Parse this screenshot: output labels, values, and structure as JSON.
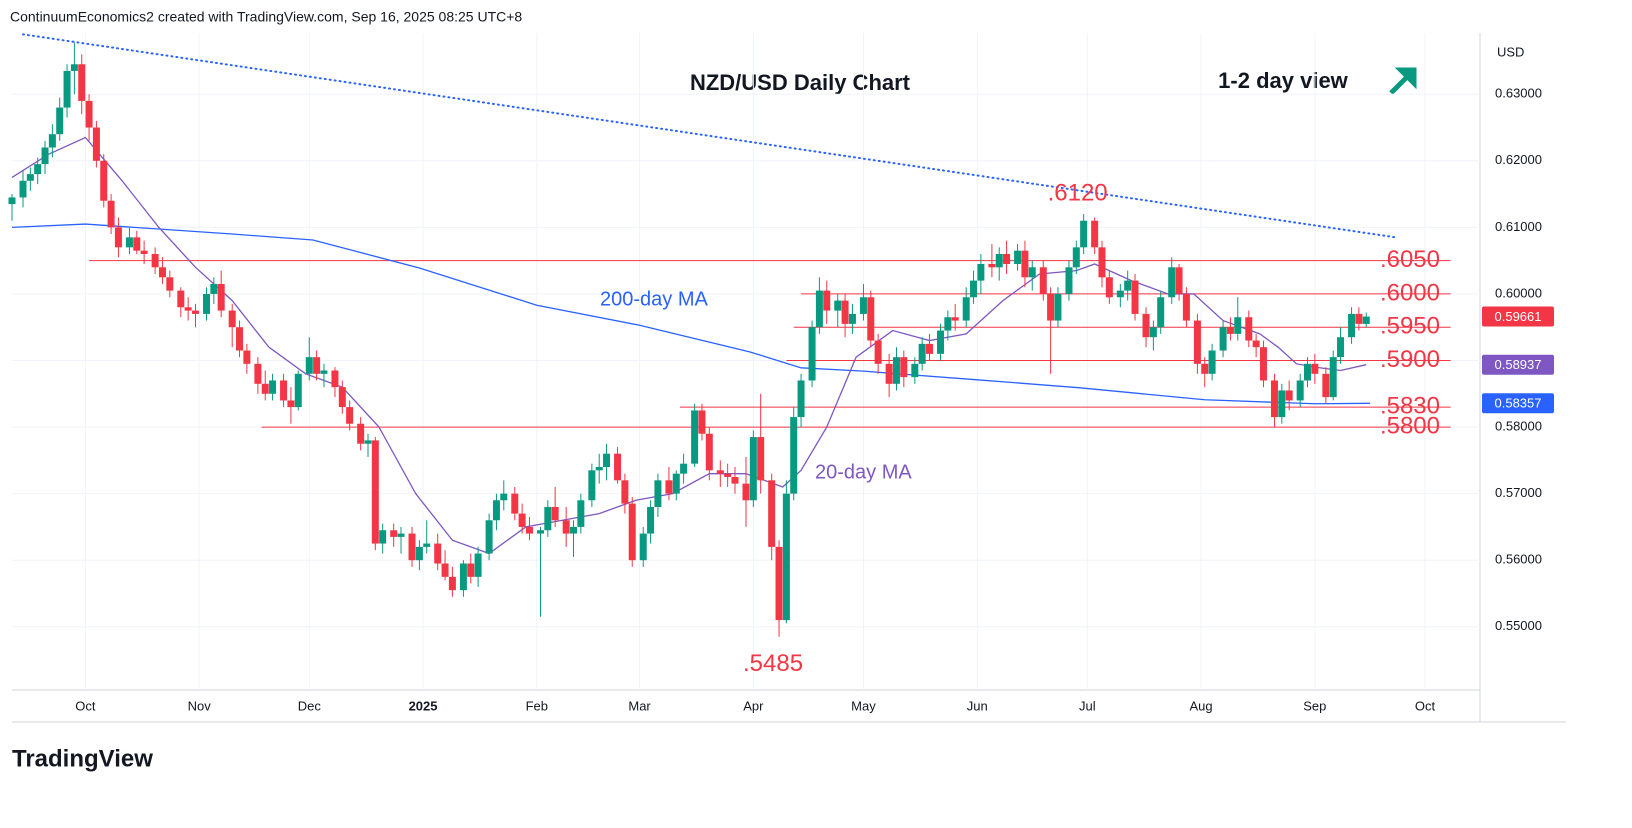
{
  "header": "ContinuumEconomics2 created with TradingView.com, Sep 16, 2025 08:25 UTC+8",
  "footer": "TradingView",
  "chart_data": {
    "type": "candlestick",
    "title": "NZD/USD Daily Chart",
    "subtitle": "1-2 day view",
    "currency": "USD",
    "xlim": [
      0,
      400
    ],
    "ylim": [
      0.5405,
      0.6392
    ],
    "grid": true,
    "up_color": "#089981",
    "down_color": "#f23645",
    "xticks": [
      {
        "value": 20,
        "label": "Oct"
      },
      {
        "value": 51,
        "label": "Nov"
      },
      {
        "value": 81,
        "label": "Dec"
      },
      {
        "value": 112,
        "label": "2025"
      },
      {
        "value": 143,
        "label": "Feb"
      },
      {
        "value": 171,
        "label": "Mar"
      },
      {
        "value": 202,
        "label": "Apr"
      },
      {
        "value": 232,
        "label": "May"
      },
      {
        "value": 263,
        "label": "Jun"
      },
      {
        "value": 293,
        "label": "Jul"
      },
      {
        "value": 324,
        "label": "Aug"
      },
      {
        "value": 355,
        "label": "Sep"
      },
      {
        "value": 385,
        "label": "Oct"
      }
    ],
    "yticks": [
      {
        "value": 0.55,
        "label": "0.55000"
      },
      {
        "value": 0.56,
        "label": "0.56000"
      },
      {
        "value": 0.57,
        "label": "0.57000"
      },
      {
        "value": 0.58,
        "label": "0.58000"
      },
      {
        "value": 0.59,
        "label": "0.59000"
      },
      {
        "value": 0.6,
        "label": "0.60000"
      },
      {
        "value": 0.61,
        "label": "0.61000"
      },
      {
        "value": 0.62,
        "label": "0.62000"
      },
      {
        "value": 0.63,
        "label": "0.63000"
      }
    ],
    "candles": [
      [
        0,
        0.6135,
        0.615,
        0.611,
        0.6145
      ],
      [
        3,
        0.6145,
        0.6185,
        0.613,
        0.617
      ],
      [
        5,
        0.617,
        0.619,
        0.6155,
        0.618
      ],
      [
        7,
        0.618,
        0.6205,
        0.6165,
        0.6195
      ],
      [
        9,
        0.6195,
        0.623,
        0.618,
        0.622
      ],
      [
        11,
        0.622,
        0.6255,
        0.6205,
        0.624
      ],
      [
        13,
        0.624,
        0.6295,
        0.623,
        0.628
      ],
      [
        15,
        0.628,
        0.6345,
        0.6265,
        0.6335
      ],
      [
        17,
        0.6335,
        0.6378,
        0.63,
        0.6345
      ],
      [
        19,
        0.6345,
        0.636,
        0.627,
        0.629
      ],
      [
        21,
        0.629,
        0.63,
        0.623,
        0.625
      ],
      [
        23,
        0.625,
        0.626,
        0.619,
        0.62
      ],
      [
        25,
        0.62,
        0.621,
        0.613,
        0.614
      ],
      [
        27,
        0.614,
        0.615,
        0.609,
        0.61
      ],
      [
        29,
        0.61,
        0.6115,
        0.6055,
        0.607
      ],
      [
        32,
        0.607,
        0.61,
        0.606,
        0.6085
      ],
      [
        34,
        0.6085,
        0.6095,
        0.606,
        0.6065
      ],
      [
        36,
        0.6065,
        0.608,
        0.6045,
        0.606
      ],
      [
        39,
        0.606,
        0.607,
        0.603,
        0.604
      ],
      [
        41,
        0.604,
        0.6055,
        0.6015,
        0.6025
      ],
      [
        43,
        0.6025,
        0.6035,
        0.5995,
        0.6005
      ],
      [
        46,
        0.6005,
        0.601,
        0.5965,
        0.598
      ],
      [
        48,
        0.598,
        0.5995,
        0.596,
        0.5975
      ],
      [
        50,
        0.5975,
        0.5985,
        0.595,
        0.597
      ],
      [
        53,
        0.597,
        0.601,
        0.596,
        0.6
      ],
      [
        55,
        0.6,
        0.6025,
        0.5985,
        0.6015
      ],
      [
        57,
        0.6015,
        0.6035,
        0.5965,
        0.5975
      ],
      [
        60,
        0.5975,
        0.5985,
        0.592,
        0.595
      ],
      [
        62,
        0.595,
        0.596,
        0.5905,
        0.5915
      ],
      [
        64,
        0.5915,
        0.5925,
        0.588,
        0.5895
      ],
      [
        67,
        0.5895,
        0.5905,
        0.585,
        0.5865
      ],
      [
        69,
        0.5865,
        0.5885,
        0.584,
        0.585
      ],
      [
        71,
        0.585,
        0.588,
        0.584,
        0.587
      ],
      [
        74,
        0.587,
        0.588,
        0.583,
        0.584
      ],
      [
        76,
        0.584,
        0.586,
        0.5805,
        0.583
      ],
      [
        78,
        0.583,
        0.5885,
        0.5825,
        0.588
      ],
      [
        81,
        0.588,
        0.5935,
        0.587,
        0.5905
      ],
      [
        83,
        0.5905,
        0.5915,
        0.587,
        0.588
      ],
      [
        85,
        0.588,
        0.5895,
        0.586,
        0.5885
      ],
      [
        88,
        0.5885,
        0.589,
        0.5845,
        0.586
      ],
      [
        90,
        0.586,
        0.587,
        0.582,
        0.583
      ],
      [
        92,
        0.583,
        0.584,
        0.5795,
        0.5805
      ],
      [
        95,
        0.5805,
        0.5815,
        0.5765,
        0.5775
      ],
      [
        97,
        0.5775,
        0.579,
        0.5755,
        0.578
      ],
      [
        99,
        0.578,
        0.5785,
        0.5615,
        0.5625
      ],
      [
        101,
        0.5625,
        0.5655,
        0.561,
        0.5645
      ],
      [
        104,
        0.5645,
        0.5655,
        0.562,
        0.5635
      ],
      [
        106,
        0.5635,
        0.565,
        0.561,
        0.564
      ],
      [
        109,
        0.564,
        0.565,
        0.559,
        0.56
      ],
      [
        111,
        0.56,
        0.563,
        0.5585,
        0.562
      ],
      [
        113,
        0.562,
        0.566,
        0.561,
        0.5625
      ],
      [
        116,
        0.5625,
        0.564,
        0.5585,
        0.5595
      ],
      [
        118,
        0.5595,
        0.5615,
        0.557,
        0.5575
      ],
      [
        120,
        0.5575,
        0.559,
        0.5545,
        0.5555
      ],
      [
        123,
        0.5555,
        0.56,
        0.5545,
        0.5595
      ],
      [
        125,
        0.5595,
        0.561,
        0.5565,
        0.5575
      ],
      [
        127,
        0.5575,
        0.562,
        0.556,
        0.561
      ],
      [
        130,
        0.561,
        0.567,
        0.56,
        0.566
      ],
      [
        132,
        0.566,
        0.57,
        0.5645,
        0.569
      ],
      [
        134,
        0.569,
        0.572,
        0.5675,
        0.57
      ],
      [
        137,
        0.57,
        0.571,
        0.566,
        0.567
      ],
      [
        139,
        0.567,
        0.5685,
        0.564,
        0.565
      ],
      [
        141,
        0.565,
        0.5665,
        0.563,
        0.564
      ],
      [
        144,
        0.564,
        0.565,
        0.5515,
        0.5645
      ],
      [
        146,
        0.5645,
        0.569,
        0.5635,
        0.568
      ],
      [
        148,
        0.568,
        0.571,
        0.565,
        0.566
      ],
      [
        151,
        0.566,
        0.568,
        0.562,
        0.564
      ],
      [
        153,
        0.564,
        0.566,
        0.5605,
        0.565
      ],
      [
        155,
        0.565,
        0.57,
        0.564,
        0.569
      ],
      [
        158,
        0.569,
        0.5745,
        0.568,
        0.5735
      ],
      [
        160,
        0.5735,
        0.576,
        0.5715,
        0.574
      ],
      [
        162,
        0.574,
        0.5775,
        0.572,
        0.576
      ],
      [
        165,
        0.576,
        0.577,
        0.5715,
        0.572
      ],
      [
        167,
        0.572,
        0.573,
        0.567,
        0.5685
      ],
      [
        169,
        0.5685,
        0.5695,
        0.559,
        0.56
      ],
      [
        172,
        0.56,
        0.565,
        0.559,
        0.564
      ],
      [
        174,
        0.564,
        0.569,
        0.5625,
        0.568
      ],
      [
        176,
        0.568,
        0.573,
        0.5665,
        0.572
      ],
      [
        179,
        0.572,
        0.574,
        0.569,
        0.57
      ],
      [
        181,
        0.57,
        0.5735,
        0.569,
        0.573
      ],
      [
        183,
        0.573,
        0.576,
        0.5715,
        0.5745
      ],
      [
        186,
        0.5745,
        0.5835,
        0.574,
        0.5825
      ],
      [
        188,
        0.5825,
        0.5835,
        0.578,
        0.579
      ],
      [
        190,
        0.579,
        0.58,
        0.572,
        0.5735
      ],
      [
        193,
        0.5735,
        0.575,
        0.571,
        0.573
      ],
      [
        195,
        0.573,
        0.5745,
        0.571,
        0.5725
      ],
      [
        197,
        0.5725,
        0.574,
        0.57,
        0.5715
      ],
      [
        200,
        0.5715,
        0.5755,
        0.565,
        0.569
      ],
      [
        202,
        0.569,
        0.5795,
        0.568,
        0.5785
      ],
      [
        204,
        0.5785,
        0.585,
        0.57,
        0.572
      ],
      [
        207,
        0.572,
        0.573,
        0.56,
        0.562
      ],
      [
        209,
        0.562,
        0.563,
        0.5485,
        0.551
      ],
      [
        211,
        0.551,
        0.572,
        0.5505,
        0.57
      ],
      [
        213,
        0.57,
        0.583,
        0.569,
        0.5815
      ],
      [
        215,
        0.5815,
        0.588,
        0.58,
        0.587
      ],
      [
        218,
        0.587,
        0.596,
        0.586,
        0.595
      ],
      [
        220,
        0.595,
        0.6025,
        0.594,
        0.6005
      ],
      [
        222,
        0.6005,
        0.602,
        0.5955,
        0.5975
      ],
      [
        225,
        0.5975,
        0.6,
        0.595,
        0.599
      ],
      [
        227,
        0.599,
        0.6,
        0.5935,
        0.5955
      ],
      [
        229,
        0.5955,
        0.5985,
        0.594,
        0.597
      ],
      [
        232,
        0.597,
        0.6015,
        0.596,
        0.5995
      ],
      [
        234,
        0.5995,
        0.6005,
        0.592,
        0.593
      ],
      [
        236,
        0.593,
        0.594,
        0.588,
        0.5895
      ],
      [
        239,
        0.5895,
        0.591,
        0.5845,
        0.5865
      ],
      [
        241,
        0.5865,
        0.592,
        0.5855,
        0.5905
      ],
      [
        243,
        0.5905,
        0.5915,
        0.586,
        0.5875
      ],
      [
        246,
        0.5875,
        0.5905,
        0.5865,
        0.5895
      ],
      [
        248,
        0.5895,
        0.5935,
        0.5885,
        0.5925
      ],
      [
        250,
        0.5925,
        0.594,
        0.59,
        0.591
      ],
      [
        253,
        0.591,
        0.5955,
        0.59,
        0.5945
      ],
      [
        255,
        0.5945,
        0.5975,
        0.593,
        0.5965
      ],
      [
        257,
        0.5965,
        0.5985,
        0.5945,
        0.596
      ],
      [
        260,
        0.596,
        0.601,
        0.595,
        0.5995
      ],
      [
        262,
        0.5995,
        0.6035,
        0.5985,
        0.602
      ],
      [
        264,
        0.602,
        0.606,
        0.6,
        0.6045
      ],
      [
        267,
        0.6045,
        0.6075,
        0.6025,
        0.604
      ],
      [
        269,
        0.604,
        0.607,
        0.602,
        0.606
      ],
      [
        271,
        0.606,
        0.608,
        0.603,
        0.6045
      ],
      [
        274,
        0.6045,
        0.6075,
        0.6035,
        0.6065
      ],
      [
        276,
        0.6065,
        0.608,
        0.601,
        0.6025
      ],
      [
        278,
        0.6025,
        0.605,
        0.6005,
        0.604
      ],
      [
        281,
        0.604,
        0.605,
        0.599,
        0.6
      ],
      [
        283,
        0.6,
        0.601,
        0.588,
        0.596
      ],
      [
        285,
        0.596,
        0.601,
        0.595,
        0.6
      ],
      [
        288,
        0.6,
        0.605,
        0.599,
        0.604
      ],
      [
        290,
        0.604,
        0.608,
        0.603,
        0.607
      ],
      [
        292,
        0.607,
        0.612,
        0.606,
        0.611
      ],
      [
        295,
        0.611,
        0.6115,
        0.606,
        0.607
      ],
      [
        297,
        0.607,
        0.608,
        0.601,
        0.6025
      ],
      [
        299,
        0.6025,
        0.6035,
        0.5985,
        0.5995
      ],
      [
        302,
        0.5995,
        0.6015,
        0.598,
        0.6005
      ],
      [
        304,
        0.6005,
        0.6035,
        0.599,
        0.602
      ],
      [
        306,
        0.602,
        0.603,
        0.596,
        0.597
      ],
      [
        309,
        0.597,
        0.598,
        0.592,
        0.5935
      ],
      [
        311,
        0.5935,
        0.596,
        0.5915,
        0.595
      ],
      [
        313,
        0.595,
        0.6005,
        0.594,
        0.5995
      ],
      [
        316,
        0.5995,
        0.6055,
        0.5985,
        0.604
      ],
      [
        318,
        0.604,
        0.6045,
        0.599,
        0.6
      ],
      [
        320,
        0.6,
        0.601,
        0.595,
        0.596
      ],
      [
        323,
        0.596,
        0.597,
        0.588,
        0.5895
      ],
      [
        325,
        0.5895,
        0.5905,
        0.586,
        0.588
      ],
      [
        327,
        0.588,
        0.5925,
        0.587,
        0.5915
      ],
      [
        330,
        0.5915,
        0.596,
        0.5905,
        0.595
      ],
      [
        332,
        0.595,
        0.5965,
        0.593,
        0.594
      ],
      [
        334,
        0.594,
        0.5995,
        0.593,
        0.5965
      ],
      [
        337,
        0.5965,
        0.5975,
        0.592,
        0.593
      ],
      [
        339,
        0.593,
        0.594,
        0.5905,
        0.592
      ],
      [
        341,
        0.592,
        0.593,
        0.586,
        0.587
      ],
      [
        344,
        0.587,
        0.588,
        0.58,
        0.5815
      ],
      [
        346,
        0.5815,
        0.5865,
        0.5805,
        0.5855
      ],
      [
        348,
        0.5855,
        0.587,
        0.5825,
        0.584
      ],
      [
        351,
        0.584,
        0.588,
        0.583,
        0.587
      ],
      [
        353,
        0.587,
        0.5905,
        0.586,
        0.5895
      ],
      [
        355,
        0.5895,
        0.591,
        0.5865,
        0.588
      ],
      [
        358,
        0.588,
        0.589,
        0.5835,
        0.5845
      ],
      [
        360,
        0.5845,
        0.5915,
        0.584,
        0.5905
      ],
      [
        362,
        0.5905,
        0.595,
        0.5895,
        0.5935
      ],
      [
        365,
        0.5935,
        0.598,
        0.5925,
        0.597
      ],
      [
        367,
        0.597,
        0.598,
        0.5945,
        0.5955
      ],
      [
        369,
        0.5955,
        0.5972,
        0.595,
        0.5966
      ]
    ],
    "series": [
      {
        "name": "200-day MA",
        "color": "#2962ff",
        "x": [
          0,
          20,
          60,
          82,
          111,
          143,
          171,
          201,
          215,
          232,
          263,
          291,
          325,
          355,
          370
        ],
        "values": [
          0.61,
          0.6105,
          0.609,
          0.6081,
          0.6039,
          0.5983,
          0.5953,
          0.5913,
          0.5889,
          0.5884,
          0.5871,
          0.5859,
          0.5841,
          0.5835,
          0.58357
        ]
      },
      {
        "name": "20-day MA",
        "color": "#7e57c2",
        "x": [
          0,
          10,
          20,
          30,
          40,
          50,
          60,
          70,
          80,
          90,
          100,
          110,
          120,
          130,
          140,
          150,
          160,
          170,
          180,
          190,
          200,
          210,
          215,
          222,
          230,
          240,
          250,
          260,
          270,
          280,
          290,
          295,
          305,
          315,
          322,
          330,
          340,
          345,
          350,
          355,
          362,
          369
        ],
        "values": [
          0.6175,
          0.621,
          0.6235,
          0.617,
          0.61,
          0.604,
          0.599,
          0.592,
          0.588,
          0.586,
          0.58,
          0.57,
          0.563,
          0.561,
          0.565,
          0.566,
          0.567,
          0.569,
          0.57,
          0.573,
          0.573,
          0.571,
          0.5735,
          0.58,
          0.5905,
          0.5945,
          0.593,
          0.594,
          0.599,
          0.603,
          0.6035,
          0.6045,
          0.602,
          0.6,
          0.6,
          0.596,
          0.594,
          0.592,
          0.5895,
          0.589,
          0.5885,
          0.58937
        ]
      }
    ],
    "trendline": {
      "color": "#2962ff",
      "x": [
        3,
        377
      ],
      "values": [
        0.639,
        0.6085
      ]
    },
    "levels": [
      {
        "value": 0.605,
        "label": ".6050",
        "x_start": 21
      },
      {
        "value": 0.6,
        "label": ".6000",
        "x_start": 215
      },
      {
        "value": 0.595,
        "label": ".5950",
        "x_start": 213
      },
      {
        "value": 0.59,
        "label": ".5900",
        "x_start": 211
      },
      {
        "value": 0.583,
        "label": ".5830",
        "x_start": 182
      },
      {
        "value": 0.58,
        "label": ".5800",
        "x_start": 68
      }
    ],
    "level_end": 392,
    "level_color": "#f23645",
    "annotations": [
      {
        "value": 0.612,
        "label": ".6120",
        "x": 292
      },
      {
        "value": 0.5485,
        "label": ".5485",
        "x": 209
      }
    ],
    "price_badges": [
      {
        "value": 0.59661,
        "color": "#f23645"
      },
      {
        "value": 0.58937,
        "color": "#7e57c2"
      },
      {
        "value": 0.58357,
        "color": "#2962ff"
      }
    ]
  }
}
